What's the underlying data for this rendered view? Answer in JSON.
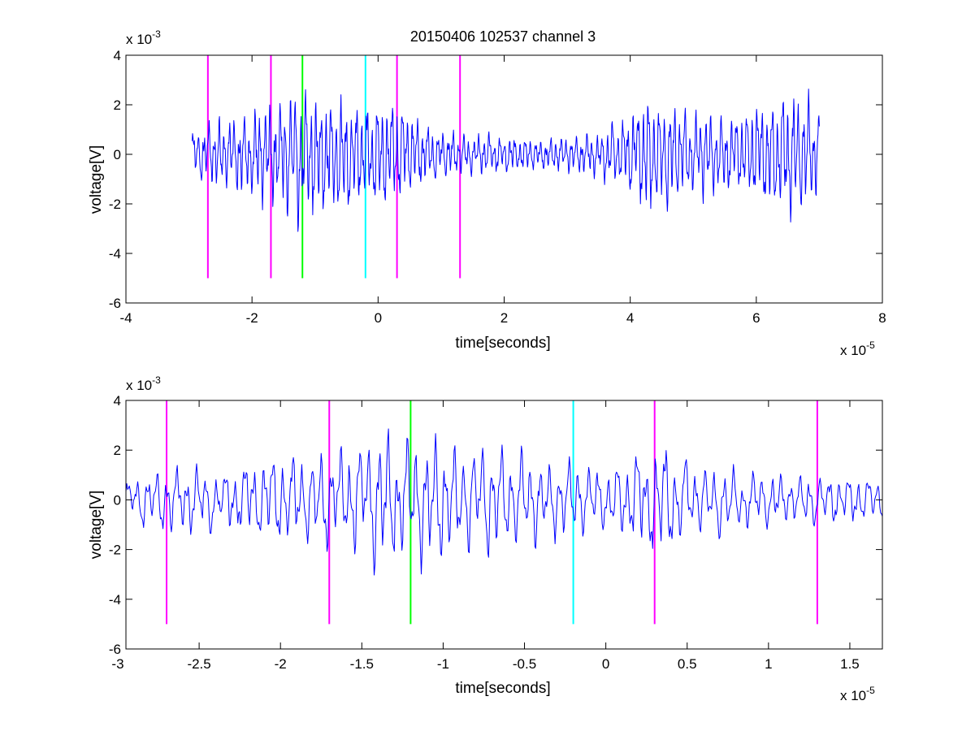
{
  "figure": {
    "title": "20150406 102537 channel 3",
    "background": "#ffffff"
  },
  "colors": {
    "trace": "#0000ff",
    "magenta": "#ff00ff",
    "green": "#00ff00",
    "cyan": "#00ffff",
    "axis": "#000000"
  },
  "chart_data": [
    {
      "type": "line",
      "title": "20150406 102537 channel 3",
      "xlabel": "time[seconds]",
      "ylabel": "voltage[V]",
      "x_multiplier": {
        "base": "x 10",
        "exponent": "-5"
      },
      "y_multiplier": {
        "base": "x 10",
        "exponent": "-3"
      },
      "xlim": [
        -4,
        8
      ],
      "ylim": [
        -6,
        4
      ],
      "xticks": [
        -4,
        -2,
        0,
        2,
        4,
        6,
        8
      ],
      "xtick_labels": [
        "-4",
        "-2",
        "0",
        "2",
        "4",
        "6",
        "8"
      ],
      "yticks": [
        -6,
        -4,
        -2,
        0,
        2,
        4
      ],
      "ytick_labels": [
        "-6",
        "-4",
        "-2",
        "0",
        "2",
        "4"
      ],
      "grid": false,
      "series": [
        {
          "style": "line",
          "color": "#0000ff",
          "x_range": [
            -2.95,
            7.0
          ],
          "envelope_x": [
            -2.95,
            -2.7,
            -2.4,
            -2.0,
            -1.7,
            -1.5,
            -1.2,
            -1.0,
            -0.6,
            -0.2,
            0.3,
            0.6,
            1.0,
            1.3,
            2.0,
            2.5,
            3.0,
            3.5,
            3.9,
            4.3,
            4.6,
            5.0,
            5.5,
            6.0,
            6.5,
            6.8,
            7.0
          ],
          "envelope_amp": [
            1.0,
            1.4,
            1.6,
            2.0,
            2.3,
            2.6,
            3.0,
            2.8,
            2.5,
            2.2,
            2.5,
            1.6,
            1.1,
            0.9,
            0.8,
            0.75,
            0.8,
            1.0,
            1.6,
            2.8,
            2.4,
            1.8,
            1.7,
            2.1,
            2.8,
            2.7,
            2.0
          ],
          "seed": 20150406,
          "samples": 1400
        }
      ],
      "markers": [
        {
          "x": -2.7,
          "y_from": -5,
          "y_to": 4,
          "color": "#ff00ff"
        },
        {
          "x": -1.7,
          "y_from": -5,
          "y_to": 4,
          "color": "#ff00ff"
        },
        {
          "x": -1.2,
          "y_from": -5,
          "y_to": 4,
          "color": "#00ff00"
        },
        {
          "x": -0.2,
          "y_from": -5,
          "y_to": 4,
          "color": "#00ffff"
        },
        {
          "x": 0.3,
          "y_from": -5,
          "y_to": 4,
          "color": "#ff00ff"
        },
        {
          "x": 1.3,
          "y_from": -5,
          "y_to": 4,
          "color": "#ff00ff"
        }
      ]
    },
    {
      "type": "line",
      "title": "",
      "xlabel": "time[seconds]",
      "ylabel": "voltage[V]",
      "x_multiplier": {
        "base": "x 10",
        "exponent": "-5"
      },
      "y_multiplier": {
        "base": "x 10",
        "exponent": "-3"
      },
      "xlim": [
        -2.95,
        1.7
      ],
      "ylim": [
        -6,
        4
      ],
      "xticks": [
        -3,
        -2.5,
        -2,
        -1.5,
        -1,
        -0.5,
        0,
        0.5,
        1,
        1.5
      ],
      "xtick_labels": [
        "-3",
        "-2.5",
        "-2",
        "-1.5",
        "-1",
        "-0.5",
        "0",
        "0.5",
        "1",
        "1.5"
      ],
      "yticks": [
        -6,
        -4,
        -2,
        0,
        2,
        4
      ],
      "ytick_labels": [
        "-6",
        "-4",
        "-2",
        "0",
        "2",
        "4"
      ],
      "grid": false,
      "series": [
        {
          "style": "line",
          "color": "#0000ff",
          "x_range": [
            -2.95,
            1.7
          ],
          "envelope_x": [
            -2.95,
            -2.7,
            -2.4,
            -2.0,
            -1.7,
            -1.5,
            -1.35,
            -1.2,
            -1.0,
            -0.6,
            -0.2,
            0.0,
            0.3,
            0.6,
            1.0,
            1.3,
            1.7
          ],
          "envelope_amp": [
            1.0,
            1.5,
            1.4,
            2.0,
            2.2,
            2.6,
            3.3,
            2.9,
            2.8,
            2.3,
            1.6,
            1.3,
            2.6,
            1.5,
            1.2,
            1.1,
            1.0
          ],
          "seed": 102537,
          "samples": 900
        }
      ],
      "markers": [
        {
          "x": -2.7,
          "y_from": -5,
          "y_to": 4,
          "color": "#ff00ff"
        },
        {
          "x": -1.7,
          "y_from": -5,
          "y_to": 4,
          "color": "#ff00ff"
        },
        {
          "x": -1.2,
          "y_from": -5,
          "y_to": 4,
          "color": "#00ff00"
        },
        {
          "x": -0.2,
          "y_from": -5,
          "y_to": 4,
          "color": "#00ffff"
        },
        {
          "x": 0.3,
          "y_from": -5,
          "y_to": 4,
          "color": "#ff00ff"
        },
        {
          "x": 1.3,
          "y_from": -5,
          "y_to": 4,
          "color": "#ff00ff"
        }
      ]
    }
  ]
}
